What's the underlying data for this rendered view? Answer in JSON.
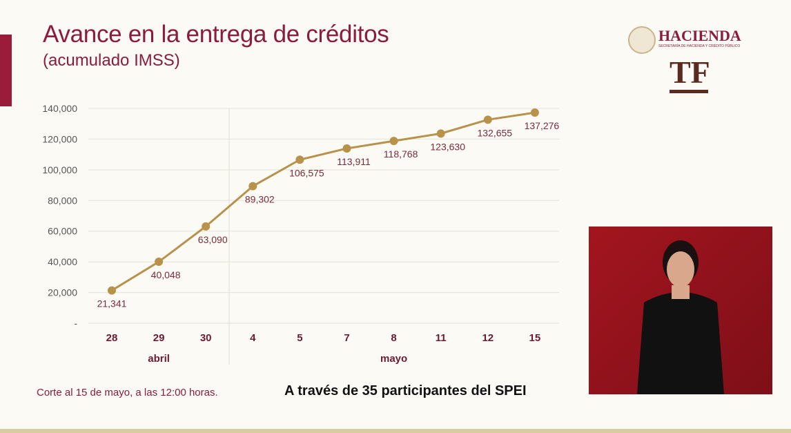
{
  "header": {
    "title": "Avance en la entrega de créditos",
    "subtitle": "(acumulado IMSS)"
  },
  "logos": {
    "hacienda": "HACIENDA",
    "hacienda_sub": "SECRETARÍA DE HACIENDA Y CRÉDITO PÚBLICO",
    "tf": "TF"
  },
  "chart_data": {
    "type": "line",
    "categories": [
      "28",
      "29",
      "30",
      "4",
      "5",
      "7",
      "8",
      "11",
      "12",
      "15"
    ],
    "groups": [
      {
        "label": "abril",
        "count": 3
      },
      {
        "label": "mayo",
        "count": 7
      }
    ],
    "values": [
      21341,
      40048,
      63090,
      89302,
      106575,
      113911,
      118768,
      123630,
      132655,
      137276
    ],
    "data_labels": [
      "21,341",
      "40,048",
      "63,090",
      "89,302",
      "106,575",
      "113,911",
      "118,768",
      "123,630",
      "132,655",
      "137,276"
    ],
    "yticks": [
      "-",
      "20,000",
      "40,000",
      "60,000",
      "80,000",
      "100,000",
      "120,000",
      "140,000"
    ],
    "ylim": [
      0,
      140000
    ],
    "grid": true,
    "line_color": "#b8914a",
    "label_color": "#7a2a3a"
  },
  "footer": {
    "note": "Corte al 15 de mayo, a las 12:00 horas.",
    "spei": "A través de 35 participantes del SPEI"
  },
  "video": {
    "label": "sign-language-interpreter",
    "bg": "#a3151f"
  }
}
